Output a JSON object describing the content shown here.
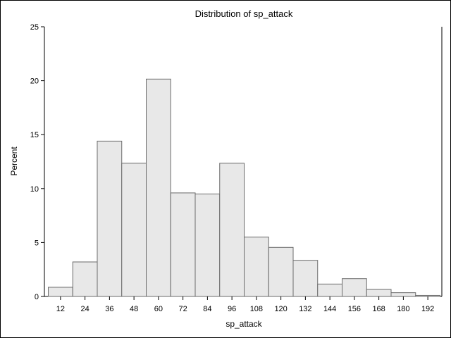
{
  "chart_data": {
    "type": "bar",
    "title": "Distribution of sp_attack",
    "xlabel": "sp_attack",
    "ylabel": "Percent",
    "ylim": [
      0,
      25
    ],
    "yticks": [
      0,
      5,
      10,
      15,
      20,
      25
    ],
    "categories": [
      "12",
      "24",
      "36",
      "48",
      "60",
      "72",
      "84",
      "96",
      "108",
      "120",
      "132",
      "144",
      "156",
      "168",
      "180",
      "192"
    ],
    "values": [
      0.85,
      3.2,
      14.4,
      12.35,
      20.15,
      9.6,
      9.5,
      12.35,
      5.5,
      4.55,
      3.35,
      1.15,
      1.65,
      0.65,
      0.35,
      0.1
    ],
    "grid": false,
    "bar_fill": "#e8e8e8",
    "bar_stroke": "#6b6b6b"
  }
}
